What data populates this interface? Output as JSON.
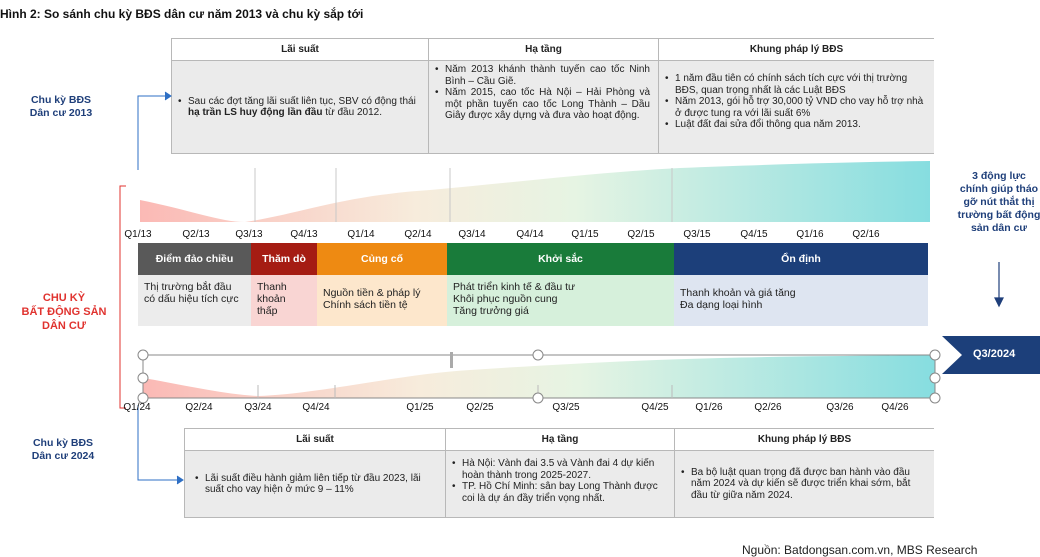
{
  "title": "Hình 2: So sánh chu kỳ BĐS dân cư năm 2013 và chu kỳ sắp tới",
  "cycle_2013": {
    "label": "Chu kỳ BĐS\nDân cư 2013",
    "headers": [
      "Lãi suất",
      "Hạ tầng",
      "Khung pháp lý BĐS"
    ],
    "interest": {
      "before": "Sau các đợt tăng lãi suất liên tục, SBV có động thái ",
      "bold": "hạ trần LS huy động lần đầu",
      "after": " từ đầu 2012."
    },
    "infrastructure": [
      "Năm 2013 khánh thành tuyến cao tốc Ninh Bình – Cầu Giẽ.",
      "Năm 2015, cao tốc Hà Nội – Hải Phòng và một phần tuyến cao tốc Long Thành – Dầu Giây được xây dựng và đưa vào hoạt động."
    ],
    "legal": [
      "1 năm đầu tiên có chính sách tích cực với thị trường BĐS, quan trọng nhất là các Luật BĐS",
      "Năm 2013, gói hỗ trợ 30,000 tỷ VND cho vay hỗ trợ nhà ở được tung ra với lãi suất 6%",
      "Luật đất đai sửa đổi thông qua năm 2013."
    ]
  },
  "cycle_label": "CHU KỲ\nBẤT ĐỘNG SẢN\nDÂN CƯ",
  "quarters_2013": [
    "Q1/13",
    "Q2/13",
    "Q3/13",
    "Q4/13",
    "Q1/14",
    "Q2/14",
    "Q3/14",
    "Q4/14",
    "Q1/15",
    "Q2/15",
    "Q3/15",
    "Q4/15",
    "Q1/16",
    "Q2/16"
  ],
  "phases": [
    {
      "name": "Điểm đảo chiều",
      "color": "#595959",
      "body_bg": "#ececec",
      "text": "Thị trường bắt đầu có dấu hiệu tích cực"
    },
    {
      "name": "Thăm dò",
      "color": "#a51c13",
      "body_bg": "#f9d5d3",
      "text": "Thanh khoản thấp"
    },
    {
      "name": "Củng cố",
      "color": "#ee8a12",
      "body_bg": "#fde7cc",
      "text": "Nguồn tiền & pháp lý\nChính sách tiền tệ"
    },
    {
      "name": "Khởi sắc",
      "color": "#197b3a",
      "body_bg": "#d6f0db",
      "text": "Phát triển kinh tế & đầu tư\nKhôi phục nguồn cung\nTăng trưởng giá"
    },
    {
      "name": "Ổn định",
      "color": "#1c3f7a",
      "body_bg": "#dee5f1",
      "text": "Thanh khoản và giá tăng\nĐa dạng loại hình"
    }
  ],
  "quarters_2024": [
    "Q1/24",
    "Q2/24",
    "Q3/24",
    "Q4/24",
    "Q1/25",
    "Q2/25",
    "Q3/25",
    "Q4/25",
    "Q1/26",
    "Q2/26",
    "Q3/26",
    "Q4/26"
  ],
  "right_note": "3 động lực\nchính giúp tháo\ngỡ nút thắt thị\ntrường bất động\nsản dân cư",
  "current_marker": "Q3/2024",
  "cycle_2024": {
    "label": "Chu kỳ BĐS\nDân cư 2024",
    "headers": [
      "Lãi suất",
      "Hạ tầng",
      "Khung pháp lý BĐS"
    ],
    "interest": [
      "Lãi suất điều hành giảm liên tiếp từ đầu 2023, lãi suất cho vay hiện ở mức 9 – 11%"
    ],
    "infrastructure": [
      "Hà Nội: Vành đai 3.5 và Vành đai 4 dự kiến hoàn thành trong 2025-2027.",
      "TP. Hồ Chí Minh: sân bay Long Thành được coi là dự án đầy triển vọng nhất."
    ],
    "legal": [
      "Ba bộ luật quan trọng đã được ban hành vào đầu năm 2024 và dự kiến sẽ được triển khai sớm, bắt đầu từ giữa năm 2024."
    ]
  },
  "colors": {
    "red": "#e0332f",
    "navy": "#1f3f7a",
    "blue_arrow": "#2e6fc4",
    "teal": "#7fd8dc",
    "pink": "#f9c3c0"
  },
  "source": "Nguồn: Batdongsan.com.vn, MBS Research"
}
